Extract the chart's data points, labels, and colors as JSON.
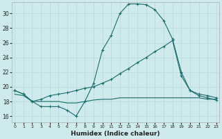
{
  "xlabel": "Humidex (Indice chaleur)",
  "background_color": "#ceeaec",
  "grid_color": "#b8d8db",
  "line_color": "#1a6b6b",
  "x_ticks": [
    0,
    1,
    2,
    3,
    4,
    5,
    6,
    7,
    8,
    9,
    10,
    11,
    12,
    13,
    14,
    15,
    16,
    17,
    18,
    19,
    20,
    21,
    22,
    23
  ],
  "y_ticks": [
    16,
    18,
    20,
    22,
    24,
    26,
    28,
    30
  ],
  "xlim": [
    -0.3,
    23.3
  ],
  "ylim": [
    15.2,
    31.5
  ],
  "series": [
    {
      "x": [
        0,
        1,
        2,
        3,
        4,
        5,
        6,
        7,
        8,
        9,
        10,
        11,
        12,
        13,
        14,
        15,
        16,
        17,
        18,
        19,
        20,
        21,
        22,
        23
      ],
      "y": [
        19.5,
        19.0,
        18.0,
        17.3,
        17.3,
        17.3,
        16.8,
        16.0,
        18.0,
        20.5,
        25.0,
        27.0,
        30.0,
        31.3,
        31.3,
        31.2,
        30.5,
        29.0,
        26.5,
        22.0,
        19.5,
        18.8,
        18.5,
        18.2
      ],
      "marker": true
    },
    {
      "x": [
        0,
        1,
        2,
        3,
        4,
        5,
        6,
        7,
        8,
        9,
        10,
        11,
        12,
        13,
        14,
        15,
        16,
        17,
        18,
        19,
        20,
        21,
        22,
        23
      ],
      "y": [
        19.5,
        19.0,
        18.0,
        18.3,
        18.8,
        19.0,
        19.2,
        19.5,
        19.8,
        20.0,
        20.5,
        21.0,
        21.8,
        22.5,
        23.3,
        24.0,
        24.8,
        25.5,
        26.3,
        21.5,
        19.5,
        19.0,
        18.8,
        18.5
      ],
      "marker": true
    },
    {
      "x": [
        0,
        1,
        2,
        3,
        4,
        5,
        6,
        7,
        8,
        9,
        10,
        11,
        12,
        13,
        14,
        15,
        16,
        17,
        18,
        19,
        20,
        21,
        22,
        23
      ],
      "y": [
        19.0,
        18.8,
        18.0,
        18.0,
        18.0,
        18.0,
        17.8,
        17.8,
        18.0,
        18.2,
        18.3,
        18.3,
        18.5,
        18.5,
        18.5,
        18.5,
        18.5,
        18.5,
        18.5,
        18.5,
        18.5,
        18.5,
        18.3,
        18.3
      ],
      "marker": false
    }
  ]
}
